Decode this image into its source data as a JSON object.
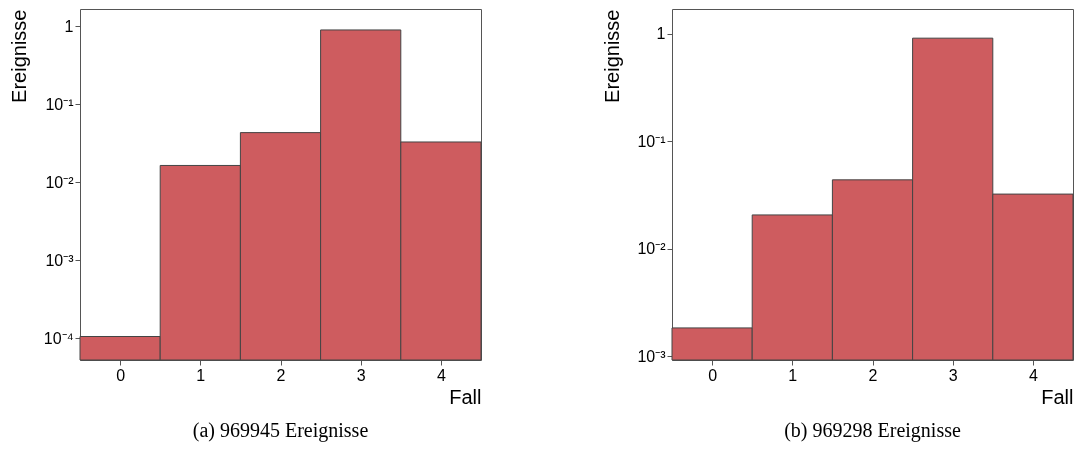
{
  "chart_data": [
    {
      "type": "histogram",
      "title": "(a) 969945 Ereignisse",
      "xlabel": "Fall",
      "ylabel": "Ereignisse",
      "bins": [
        -0.5,
        0.5,
        1.5,
        2.5,
        3.5,
        4.5
      ],
      "values": [
        0.000106,
        0.0165,
        0.0435,
        0.9,
        0.033
      ],
      "color": "#ce5c5f",
      "log": true,
      "xlim": [
        -0.5,
        4.5
      ],
      "xticks": [
        0,
        1,
        2,
        3,
        4
      ],
      "ylim": [
        5.3e-05,
        1.67
      ],
      "yticks": [
        {
          "value": 0.0001,
          "label": "10⁻⁴"
        },
        {
          "value": 0.001,
          "label": "10⁻³"
        },
        {
          "value": 0.01,
          "label": "10⁻²"
        },
        {
          "value": 0.1,
          "label": "10⁻¹"
        },
        1
      ],
      "grid": false
    },
    {
      "type": "histogram",
      "title": "(b) 969298 Ereignisse",
      "xlabel": "Fall",
      "ylabel": "Ereignisse",
      "bins": [
        -0.5,
        0.5,
        1.5,
        2.5,
        3.5,
        4.5
      ],
      "values": [
        0.00183,
        0.0206,
        0.0437,
        0.91,
        0.0322
      ],
      "color": "#ce5c5f",
      "log": true,
      "xlim": [
        -0.5,
        4.5
      ],
      "xticks": [
        0,
        1,
        2,
        3,
        4
      ],
      "ylim": [
        0.00092,
        1.7
      ],
      "yticks": [
        {
          "value": 0.001,
          "label": "10⁻³"
        },
        {
          "value": 0.01,
          "label": "10⁻²"
        },
        {
          "value": 0.1,
          "label": "10⁻¹"
        },
        1
      ],
      "grid": false
    }
  ]
}
